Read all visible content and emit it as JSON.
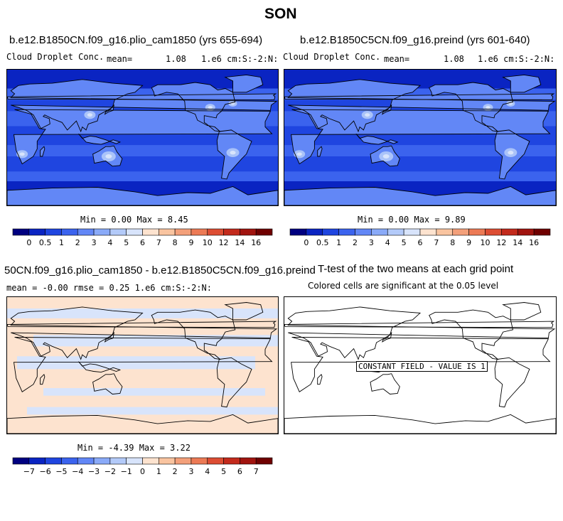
{
  "page": {
    "season": "SON"
  },
  "panels": [
    {
      "title": "b.e12.B1850CN.f09_g16.plio_cam1850 (yrs 655-694)",
      "var_label": "Cloud Droplet Conc.",
      "mean_label": "mean=",
      "mean_value": "1.08",
      "units": "1.e6 cm:S:-2:N:",
      "min_max": "Min =   0.00 Max =   8.45",
      "field": "base",
      "colormap": "cloud"
    },
    {
      "title": "b.e12.B1850C5CN.f09_g16.preind (yrs 601-640)",
      "var_label": "Cloud Droplet Conc.",
      "mean_label": "mean=",
      "mean_value": "1.08",
      "units": "1.e6 cm:S:-2:N:",
      "min_max": "Min =   0.00 Max =   9.89",
      "field": "base",
      "colormap": "cloud"
    },
    {
      "title": "50CN.f09_g16.plio_cam1850 - b.e12.B1850C5CN.f09_g16.preind",
      "stats": "mean =  -0.00    rmse =   0.25    1.e6 cm:S:-2:N:",
      "min_max": "Min =  -4.39 Max =   3.22",
      "field": "diff",
      "colormap": "diff"
    },
    {
      "title": "T-test of the two means at each grid point",
      "subtitle": "Colored cells are significant at the 0.05 level",
      "constant_label": "CONSTANT FIELD - VALUE IS 1",
      "field": "none"
    }
  ],
  "colorbars": {
    "cloud": {
      "labels": [
        "0",
        "0.5",
        "1",
        "2",
        "3",
        "4",
        "5",
        "6",
        "7",
        "8",
        "9",
        "10",
        "12",
        "14",
        "16"
      ],
      "colors": [
        "#000080",
        "#0a24c2",
        "#1f45e0",
        "#3b63ee",
        "#6287f6",
        "#8aaaf8",
        "#b3caf9",
        "#d8e4fb",
        "#fde3cf",
        "#f9c4a0",
        "#f3a07a",
        "#ec7a55",
        "#dd4d33",
        "#c32a1c",
        "#a1140f",
        "#6f0000"
      ]
    },
    "diff": {
      "labels": [
        "−7",
        "−6",
        "−5",
        "−4",
        "−3",
        "−2",
        "−1",
        "0",
        "1",
        "2",
        "3",
        "4",
        "5",
        "6",
        "7"
      ],
      "colors": [
        "#000080",
        "#0a24c2",
        "#1f45e0",
        "#3b63ee",
        "#6287f6",
        "#8aaaf8",
        "#b3caf9",
        "#d8e4fb",
        "#fde3cf",
        "#f9c4a0",
        "#f3a07a",
        "#ec7a55",
        "#dd4d33",
        "#c32a1c",
        "#a1140f",
        "#6f0000"
      ]
    }
  },
  "chart_data": [
    {
      "type": "heatmap",
      "title": "b.e12.B1850CN.f09_g16.plio_cam1850 (yrs 655-694)",
      "subtitle": "Cloud Droplet Conc.",
      "units": "1.e6 cm:S:-2:N:",
      "mean": 1.08,
      "min": 0.0,
      "max": 8.45,
      "contour_levels": [
        0,
        0.5,
        1,
        2,
        3,
        4,
        5,
        6,
        7,
        8,
        9,
        10,
        12,
        14,
        16
      ]
    },
    {
      "type": "heatmap",
      "title": "b.e12.B1850C5CN.f09_g16.preind (yrs 601-640)",
      "subtitle": "Cloud Droplet Conc.",
      "units": "1.e6 cm:S:-2:N:",
      "mean": 1.08,
      "min": 0.0,
      "max": 9.89,
      "contour_levels": [
        0,
        0.5,
        1,
        2,
        3,
        4,
        5,
        6,
        7,
        8,
        9,
        10,
        12,
        14,
        16
      ]
    },
    {
      "type": "heatmap",
      "title": "50CN.f09_g16.plio_cam1850 - b.e12.B1850C5CN.f09_g16.preind",
      "units": "1.e6 cm:S:-2:N:",
      "mean": -0.0,
      "rmse": 0.25,
      "min": -4.39,
      "max": 3.22,
      "contour_levels": [
        -7,
        -6,
        -5,
        -4,
        -3,
        -2,
        -1,
        0,
        1,
        2,
        3,
        4,
        5,
        6,
        7
      ]
    },
    {
      "type": "heatmap",
      "title": "T-test of the two means at each grid point",
      "subtitle": "Colored cells are significant at the 0.05 level",
      "annotation": "CONSTANT FIELD - VALUE IS 1"
    }
  ]
}
